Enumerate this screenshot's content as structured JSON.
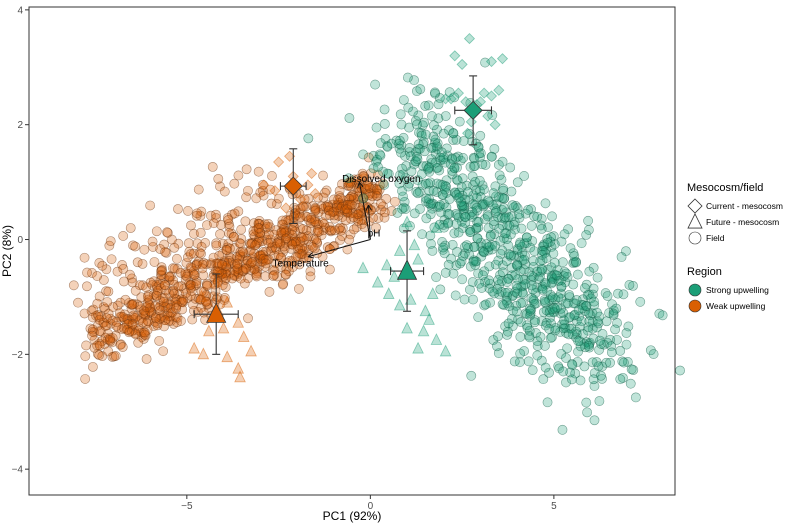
{
  "chart_data": {
    "type": "scatter",
    "xlabel": "PC1 (92%)",
    "ylabel": "PC2 (8%)",
    "xlim": [
      -9.3,
      8.3
    ],
    "ylim": [
      -4.45,
      4.05
    ],
    "x_ticks": [
      -5,
      0,
      5
    ],
    "y_ticks": [
      -4,
      -2,
      0,
      2,
      4
    ],
    "x_tick_labels": [
      "−5",
      "0",
      "5"
    ],
    "y_tick_labels": [
      "−4",
      "−2",
      "0",
      "2",
      "4"
    ],
    "grid": false,
    "legend_position": "right",
    "colors": {
      "strong": "#1b9e77",
      "weak": "#d95f02"
    },
    "legend": {
      "shape_title": "Mesocosm/field",
      "shape_items": [
        {
          "label": "Current - mesocosm",
          "shape": "diamond"
        },
        {
          "label": "Future - mesocosm",
          "shape": "triangle"
        },
        {
          "label": "Field",
          "shape": "circle"
        }
      ],
      "color_title": "Region",
      "color_items": [
        {
          "label": "Strong upwelling",
          "color": "#1b9e77"
        },
        {
          "label": "Weak upwelling",
          "color": "#d95f02"
        }
      ]
    },
    "vectors": [
      {
        "label": "Dissolved oxygen",
        "x": -0.3,
        "y": 1.0,
        "label_x": 0.3,
        "label_y": 1.07
      },
      {
        "label": "pH",
        "x": -0.05,
        "y": 0.6,
        "label_x": 0.1,
        "label_y": 0.12
      },
      {
        "label": "Temperature",
        "x": -1.7,
        "y": -0.3,
        "label_x": -1.9,
        "label_y": -0.4
      }
    ],
    "series": [
      {
        "name": "Strong upwelling",
        "color": "#1b9e77",
        "shape": "diamond",
        "summary": true,
        "x": 2.8,
        "y": 2.25,
        "x_err": 0.5,
        "y_err": 0.6
      },
      {
        "name": "Weak upwelling",
        "color": "#d95f02",
        "shape": "diamond",
        "summary": true,
        "x": -2.1,
        "y": 0.93,
        "x_err": 0.35,
        "y_err": 0.65
      },
      {
        "name": "Strong upwelling",
        "color": "#1b9e77",
        "shape": "triangle",
        "summary": true,
        "x": 1.0,
        "y": -0.55,
        "x_err": 0.45,
        "y_err": 0.7
      },
      {
        "name": "Weak upwelling",
        "color": "#d95f02",
        "shape": "triangle",
        "summary": true,
        "x": -4.2,
        "y": -1.3,
        "x_err": 0.6,
        "y_err": 0.7
      },
      {
        "name": "Strong upwelling",
        "color": "#1b9e77",
        "shape": "diamond",
        "summary": false,
        "points": [
          [
            2.7,
            3.5
          ],
          [
            2.3,
            3.2
          ],
          [
            3.3,
            3.1
          ],
          [
            3.6,
            3.15
          ],
          [
            2.5,
            3.05
          ],
          [
            2.4,
            2.55
          ],
          [
            3.5,
            2.6
          ],
          [
            3.1,
            2.55
          ],
          [
            3.3,
            2.5
          ],
          [
            2.2,
            2.45
          ],
          [
            2.05,
            2.45
          ],
          [
            2.6,
            2.4
          ],
          [
            3.4,
            2.0
          ],
          [
            2.9,
            2.35
          ],
          [
            3.0,
            2.4
          ],
          [
            2.75,
            2.05
          ],
          [
            3.2,
            2.15
          ],
          [
            2.65,
            1.85
          ]
        ]
      },
      {
        "name": "Weak upwelling",
        "color": "#d95f02",
        "shape": "diamond",
        "summary": false,
        "points": [
          [
            -2.5,
            1.35
          ],
          [
            -2.2,
            1.45
          ],
          [
            -1.6,
            1.15
          ],
          [
            -1.7,
            0.95
          ],
          [
            -2.6,
            0.85
          ],
          [
            -2.3,
            0.55
          ],
          [
            -1.9,
            0.7
          ],
          [
            -1.5,
            0.8
          ],
          [
            -2.9,
            0.95
          ],
          [
            -2.1,
            1.1
          ]
        ]
      },
      {
        "name": "Strong upwelling",
        "color": "#1b9e77",
        "shape": "triangle",
        "summary": false,
        "points": [
          [
            1.0,
            0.3
          ],
          [
            1.8,
            0.2
          ],
          [
            1.2,
            -0.1
          ],
          [
            0.8,
            -0.2
          ],
          [
            0.45,
            -0.45
          ],
          [
            -0.2,
            -0.5
          ],
          [
            0.2,
            -0.75
          ],
          [
            0.5,
            -0.95
          ],
          [
            1.7,
            -0.95
          ],
          [
            1.5,
            -1.25
          ],
          [
            1.1,
            -1.05
          ],
          [
            0.8,
            -1.15
          ],
          [
            1.6,
            -1.4
          ],
          [
            1.0,
            -1.55
          ],
          [
            1.8,
            -1.75
          ],
          [
            1.3,
            -1.9
          ],
          [
            2.05,
            -1.95
          ],
          [
            1.45,
            -1.6
          ],
          [
            0.65,
            -0.65
          ],
          [
            1.3,
            -0.35
          ]
        ]
      },
      {
        "name": "Weak upwelling",
        "color": "#d95f02",
        "shape": "triangle",
        "summary": false,
        "points": [
          [
            -4.2,
            -0.75
          ],
          [
            -4.6,
            -1.0
          ],
          [
            -3.9,
            -1.1
          ],
          [
            -4.4,
            -1.6
          ],
          [
            -4.0,
            -1.55
          ],
          [
            -3.6,
            -1.45
          ],
          [
            -4.8,
            -1.9
          ],
          [
            -4.55,
            -2.0
          ],
          [
            -3.9,
            -2.05
          ],
          [
            -3.25,
            -1.95
          ],
          [
            -3.6,
            -2.25
          ],
          [
            -3.55,
            -2.4
          ],
          [
            -4.15,
            -1.25
          ],
          [
            -3.45,
            -1.7
          ]
        ]
      }
    ]
  }
}
